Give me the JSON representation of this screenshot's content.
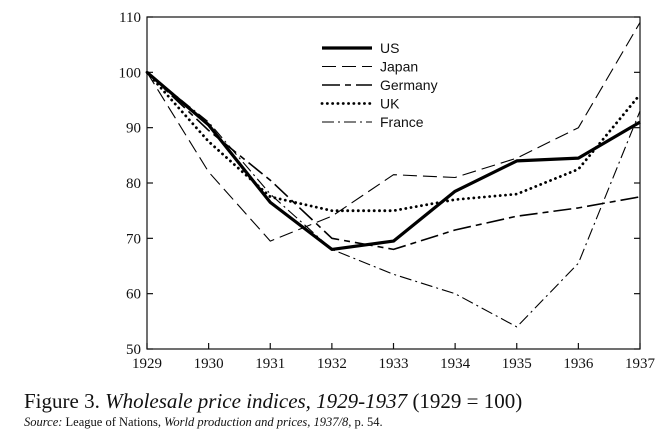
{
  "chart_data": {
    "type": "line",
    "title": "",
    "xlabel": "",
    "ylabel": "",
    "x": [
      1929,
      1930,
      1931,
      1932,
      1933,
      1934,
      1935,
      1936,
      1937
    ],
    "x_tick_labels": [
      "1929",
      "1930",
      "1931",
      "1932",
      "1933",
      "1934",
      "1935",
      "1936",
      "1937"
    ],
    "y_ticks": [
      50,
      60,
      70,
      80,
      90,
      100,
      110
    ],
    "y_tick_labels": [
      "50",
      "60",
      "70",
      "80",
      "90",
      "100",
      "110"
    ],
    "ylim": [
      50,
      110
    ],
    "xlim": [
      1929,
      1937
    ],
    "grid": false,
    "legend_position": "top-center",
    "series": [
      {
        "name": "US",
        "style": "solid-thick",
        "color": "#000000",
        "values": [
          100,
          90.5,
          76.5,
          68,
          69.5,
          78.5,
          84,
          84.5,
          91
        ]
      },
      {
        "name": "Japan",
        "style": "long-dash",
        "color": "#000000",
        "values": [
          100,
          82,
          69.5,
          74,
          81.5,
          81,
          84.5,
          90,
          109
        ]
      },
      {
        "name": "Germany",
        "style": "long-dash-short-dash",
        "color": "#000000",
        "values": [
          100,
          89.5,
          80.5,
          70,
          68,
          71.5,
          74,
          75.5,
          77.5
        ]
      },
      {
        "name": "UK",
        "style": "dotted",
        "color": "#000000",
        "values": [
          100,
          87.5,
          77.5,
          75,
          75,
          77,
          78,
          82.5,
          96
        ]
      },
      {
        "name": "France",
        "style": "dash-dot",
        "color": "#000000",
        "values": [
          100,
          91,
          78,
          68,
          63.5,
          60,
          54,
          65.5,
          93
        ]
      }
    ]
  },
  "caption": {
    "figure_number": "Figure 3.",
    "title": "Wholesale price indices, 1929-1937",
    "note": "(1929 = 100)"
  },
  "source": {
    "label": "Source:",
    "before": "League of Nations,",
    "work": "World production and prices, 1937/8,",
    "after": "p. 54."
  }
}
